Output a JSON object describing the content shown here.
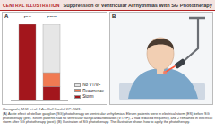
{
  "header": {
    "label": "CENTRAL ILLUSTRATION",
    "title": "Suppression of Ventricular Arrhythmias With SG Phototherapy"
  },
  "panel_labels": [
    "A",
    "B"
  ],
  "chart_data": {
    "type": "bar",
    "stacked": true,
    "categories": [
      "pre",
      "post"
    ],
    "series": [
      {
        "name": "No VT/VF",
        "color": "#e6e6e6",
        "values": [
          0,
          7
        ]
      },
      {
        "name": "Recurrence",
        "color": "#f07a52",
        "values": [
          0,
          2
        ]
      },
      {
        "name": "Storm",
        "color": "#a3161c",
        "values": [
          11,
          2
        ]
      }
    ],
    "ylim": [
      0,
      11
    ],
    "tick_labels": "x",
    "legend": "bottom-right"
  },
  "citation": "Hanaguchi, M.M. et al. J Am Coll Cardiol EP. 2021.",
  "caption": "(A) Acute effect of stellate ganglion (SG) phototherapy on ventricular arrhythmias. Eleven patients were in electrical storm (ES) before SG phototherapy (pre). Seven patients had no ventricular tachycardia/fibrillation (VT/VF), 2 had reduced frequency, and 2 remained in electrical storm after SG phototherapy (post). (B) Illustration of SG phototherapy. The illustrative shows how to apply the phototherapy."
}
